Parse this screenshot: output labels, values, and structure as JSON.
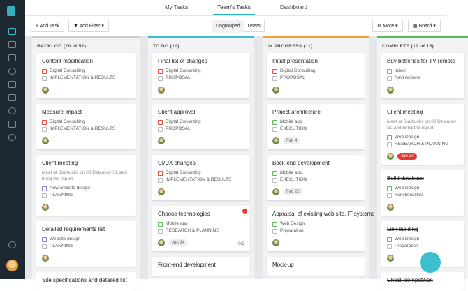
{
  "tabs": [
    "My Tasks",
    "Team's Tasks",
    "Dashboard"
  ],
  "active_tab": 1,
  "toolbar": {
    "add_task": "Add Task",
    "add_filter": "Add Filter",
    "group_options": [
      "Ungrouped",
      "Users"
    ],
    "more": "More",
    "view": "Board"
  },
  "columns": [
    {
      "title": "BACKLOG (20 of 52)",
      "color": "#c9cdd2",
      "cards": [
        {
          "title": "Content modification",
          "project": "Digital Consulting",
          "project_color": "#e74c3c",
          "stage": "IMPLEMENTATION & RESULTS"
        },
        {
          "title": "Measure impact",
          "project": "Digital Consulting",
          "project_color": "#e74c3c",
          "stage": "IMPLEMENTATION & RESULTS"
        },
        {
          "title": "Client meeting",
          "description": "Meet at Starbucks on 80 Delancey St. and bring the report",
          "project": "New website design",
          "project_color": "#8e7cc3",
          "stage": "PLANNING"
        },
        {
          "title": "Detailed requirements list",
          "project": "Website design",
          "project_color": "#8e7cc3",
          "stage": "PLANNING"
        },
        {
          "title": "Site specifications and detailed list"
        }
      ]
    },
    {
      "title": "TO DO (10)",
      "color": "#3cc0cf",
      "cards": [
        {
          "title": "Final list of changes",
          "project": "Digital Consulting",
          "project_color": "#e74c3c",
          "stage": "PROPOSAL"
        },
        {
          "title": "Client approval",
          "project": "Digital Consulting",
          "project_color": "#e74c3c",
          "stage": "PROPOSAL"
        },
        {
          "title": "UI/UX changes",
          "project": "Digital Consulting",
          "project_color": "#e74c3c",
          "stage": "IMPLEMENTATION & RESULTS"
        },
        {
          "title": "Choose technologies",
          "project": "Mobile app",
          "project_color": "#5cb85c",
          "stage": "RESEARCH & PLANNING",
          "date": "Jan 24",
          "subtasks": "0/2",
          "alert": true
        },
        {
          "title": "Front-end development"
        }
      ]
    },
    {
      "title": "IN PROGRESS (11)",
      "color": "#f0a030",
      "cards": [
        {
          "title": "Initial presentation",
          "project": "Digital Consulting",
          "project_color": "#e74c3c",
          "stage": "PROPOSAL"
        },
        {
          "title": "Project architecture",
          "project": "Mobile app",
          "project_color": "#5cb85c",
          "stage": "EXECUTION",
          "date": "Feb 4",
          "priority": true
        },
        {
          "title": "Back-end development",
          "project": "Mobile app",
          "project_color": "#5cb85c",
          "stage": "EXECUTION",
          "date": "Feb 22",
          "priority": true
        },
        {
          "title": "Appraisal of existing web site, IT systems",
          "project": "Web Design",
          "project_color": "#5cb85c",
          "stage": "Preparation"
        },
        {
          "title": "Mock-up"
        }
      ]
    },
    {
      "title": "COMPLETE (10 of 15)",
      "color": "#5cb85c",
      "done": true,
      "cards": [
        {
          "title": "Buy batteries for TV remote",
          "project": "Inbox",
          "project_color": "#9aa0a6",
          "stage": "Next Actions"
        },
        {
          "title": "Client meeting",
          "description": "Meet at Starbucks on 80 Delancey St. and bring the report",
          "project": "Web Design",
          "project_color": "#5cb85c",
          "stage": "RESEARCH & PLANNING",
          "date": "Jan 27",
          "date_overdue": true
        },
        {
          "title": "Build database",
          "project": "Web Design",
          "project_color": "#5cb85c",
          "stage": "Functionalities"
        },
        {
          "title": "Link building",
          "project": "Web Design",
          "project_color": "#5cb85c",
          "stage": "Preparation"
        },
        {
          "title": "Check competition"
        }
      ]
    }
  ]
}
